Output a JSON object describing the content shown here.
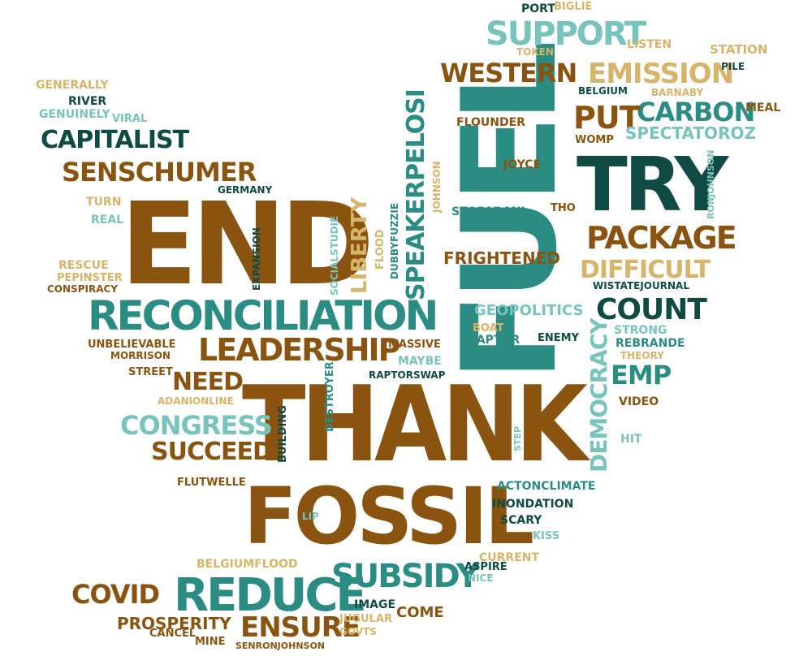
{
  "colors": {
    "brown": "#8a5410",
    "teal": "#2a8c83",
    "dark": "#0f4a44",
    "tan": "#d8b46a",
    "aqua": "#78c4bd"
  },
  "words": [
    {
      "text": "THANK",
      "color": "brown"
    },
    {
      "text": "END",
      "color": "brown"
    },
    {
      "text": "FUEL",
      "color": "teal"
    },
    {
      "text": "FOSSIL",
      "color": "brown"
    },
    {
      "text": "TRY",
      "color": "dark"
    },
    {
      "text": "RECONCILIATION",
      "color": "teal"
    },
    {
      "text": "REDUCE",
      "color": "teal"
    },
    {
      "text": "LEADERSHIP",
      "color": "brown"
    },
    {
      "text": "SUPPORT",
      "color": "aqua"
    },
    {
      "text": "SUBSIDY",
      "color": "teal"
    },
    {
      "text": "PACKAGE",
      "color": "brown"
    },
    {
      "text": "SENSCHUMER",
      "color": "brown"
    },
    {
      "text": "EMISSION",
      "color": "tan"
    },
    {
      "text": "CAPITALIST",
      "color": "dark"
    },
    {
      "text": "CARBON",
      "color": "teal"
    },
    {
      "text": "COUNT",
      "color": "dark"
    },
    {
      "text": "WESTERN",
      "color": "brown"
    },
    {
      "text": "PUT",
      "color": "brown"
    },
    {
      "text": "DIFFICULT",
      "color": "tan"
    },
    {
      "text": "CONGRESS",
      "color": "aqua"
    },
    {
      "text": "SUCCEED",
      "color": "brown"
    },
    {
      "text": "ENSURE",
      "color": "brown"
    },
    {
      "text": "COVID",
      "color": "brown"
    },
    {
      "text": "NEED",
      "color": "brown"
    },
    {
      "text": "SPEAKERPELOSI",
      "color": "teal"
    },
    {
      "text": "LIBERTY",
      "color": "tan"
    },
    {
      "text": "DEMOCRACY",
      "color": "aqua"
    },
    {
      "text": "EMP",
      "color": "teal"
    },
    {
      "text": "PROSPERITY",
      "color": "brown"
    },
    {
      "text": "SPECTATOROZ",
      "color": "aqua"
    },
    {
      "text": "FRIGHTENED",
      "color": "brown"
    },
    {
      "text": "GEOPOLITICS",
      "color": "aqua"
    },
    {
      "text": "IMAGE",
      "color": "dark"
    },
    {
      "text": "COME",
      "color": "brown"
    },
    {
      "text": "PORT",
      "color": "dark"
    },
    {
      "text": "BIGLIE",
      "color": "tan"
    },
    {
      "text": "LISTEN",
      "color": "tan"
    },
    {
      "text": "STATION",
      "color": "tan"
    },
    {
      "text": "TOKEN",
      "color": "tan"
    },
    {
      "text": "PILE",
      "color": "dark"
    },
    {
      "text": "BELGIUM",
      "color": "dark"
    },
    {
      "text": "BARNABY",
      "color": "tan"
    },
    {
      "text": "MEAL",
      "color": "brown"
    },
    {
      "text": "FLOUNDER",
      "color": "brown"
    },
    {
      "text": "WOMP",
      "color": "brown"
    },
    {
      "text": "JOYCE",
      "color": "brown"
    },
    {
      "text": "STOPADANI",
      "color": "teal"
    },
    {
      "text": "THO",
      "color": "brown"
    },
    {
      "text": "RONJOHNSON",
      "color": "aqua"
    },
    {
      "text": "WISTATEJOURNAL",
      "color": "dark"
    },
    {
      "text": "STRONG",
      "color": "aqua"
    },
    {
      "text": "REBRANDE",
      "color": "teal"
    },
    {
      "text": "THEORY",
      "color": "tan"
    },
    {
      "text": "VIDEO",
      "color": "brown"
    },
    {
      "text": "HIT",
      "color": "aqua"
    },
    {
      "text": "BOAT",
      "color": "tan"
    },
    {
      "text": "RAPTOR",
      "color": "teal"
    },
    {
      "text": "ENEMY",
      "color": "dark"
    },
    {
      "text": "MASSIVE",
      "color": "brown"
    },
    {
      "text": "MAYBE",
      "color": "aqua"
    },
    {
      "text": "RAPTORSWAP",
      "color": "dark"
    },
    {
      "text": "GENERALLY",
      "color": "tan"
    },
    {
      "text": "RIVER",
      "color": "dark"
    },
    {
      "text": "GENUINELY",
      "color": "aqua"
    },
    {
      "text": "VIRAL",
      "color": "aqua"
    },
    {
      "text": "GERMANY",
      "color": "dark"
    },
    {
      "text": "TURN",
      "color": "tan"
    },
    {
      "text": "REAL",
      "color": "aqua"
    },
    {
      "text": "RESCUE",
      "color": "tan"
    },
    {
      "text": "PEPINSTER",
      "color": "tan"
    },
    {
      "text": "CONSPIRACY",
      "color": "brown"
    },
    {
      "text": "UNBELIEVABLE",
      "color": "brown"
    },
    {
      "text": "MORRISON",
      "color": "brown"
    },
    {
      "text": "STREET",
      "color": "brown"
    },
    {
      "text": "ADANIONLINE",
      "color": "tan"
    },
    {
      "text": "EXPANSION",
      "color": "dark"
    },
    {
      "text": "SOCIALSTUDIE",
      "color": "aqua"
    },
    {
      "text": "FLOOD",
      "color": "tan"
    },
    {
      "text": "DUBBYFUZZIE",
      "color": "teal"
    },
    {
      "text": "JOHNSON",
      "color": "tan"
    },
    {
      "text": "BUILDING",
      "color": "dark"
    },
    {
      "text": "DESTROYER",
      "color": "teal"
    },
    {
      "text": "FLUTWELLE",
      "color": "brown"
    },
    {
      "text": "LIP",
      "color": "aqua"
    },
    {
      "text": "STEP",
      "color": "aqua"
    },
    {
      "text": "ACTONCLIMATE",
      "color": "teal"
    },
    {
      "text": "INONDATION",
      "color": "dark"
    },
    {
      "text": "SCARY",
      "color": "dark"
    },
    {
      "text": "KISS",
      "color": "aqua"
    },
    {
      "text": "BELGIUMFLOOD",
      "color": "tan"
    },
    {
      "text": "CURRENT",
      "color": "tan"
    },
    {
      "text": "ASPIRE",
      "color": "dark"
    },
    {
      "text": "NICE",
      "color": "aqua"
    },
    {
      "text": "JUGULAR",
      "color": "tan"
    },
    {
      "text": "CANCEL",
      "color": "brown"
    },
    {
      "text": "MINE",
      "color": "brown"
    },
    {
      "text": "GOVTS",
      "color": "tan"
    },
    {
      "text": "SENRONJOHNSON",
      "color": "brown"
    }
  ]
}
